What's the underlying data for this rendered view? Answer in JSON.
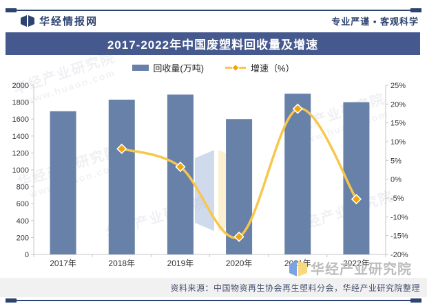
{
  "header": {
    "brand": "华经情报网",
    "slogan": "专业严谨 • 客观科学"
  },
  "title": "2017-2022年中国废塑料回收量及增速",
  "legend": {
    "bar_label": "回收量(万吨)",
    "line_label": "增速（%）"
  },
  "chart_data": {
    "type": "bar+line",
    "categories": [
      "2017年",
      "2018年",
      "2019年",
      "2020年",
      "2021年",
      "2022年"
    ],
    "series": [
      {
        "name": "回收量(万吨)",
        "type": "bar",
        "axis": "left",
        "color": "#6781a8",
        "values": [
          1693,
          1830,
          1890,
          1600,
          1900,
          1800
        ]
      },
      {
        "name": "增速（%）",
        "type": "line",
        "axis": "right",
        "color": "#f8c64a",
        "marker": "diamond",
        "marker_color": "#f0a50a",
        "values": [
          null,
          8.1,
          3.3,
          -15.3,
          18.75,
          -5.3
        ]
      }
    ],
    "left_axis": {
      "min": 0,
      "max": 2000,
      "step": 200
    },
    "right_axis": {
      "min": -20,
      "max": 25,
      "step": 5,
      "suffix": "%"
    },
    "grid": false,
    "legend_position": "top-center"
  },
  "watermark": {
    "brand": "华经产业研究院",
    "site": "www.huaon.com"
  },
  "footer": {
    "source": "资料来源：中国物资再生协会再生塑料分会，华经产业研究院整理"
  },
  "colors": {
    "brand_navy": "#2e4470",
    "banner_blue": "#45598e",
    "bar": "#6781a8",
    "line": "#f8c64a",
    "marker": "#f0a50a",
    "axis_gray": "#c6c6c6",
    "footer_bg": "#f1f1f1",
    "watermark_gray": "#bcbcbc"
  }
}
